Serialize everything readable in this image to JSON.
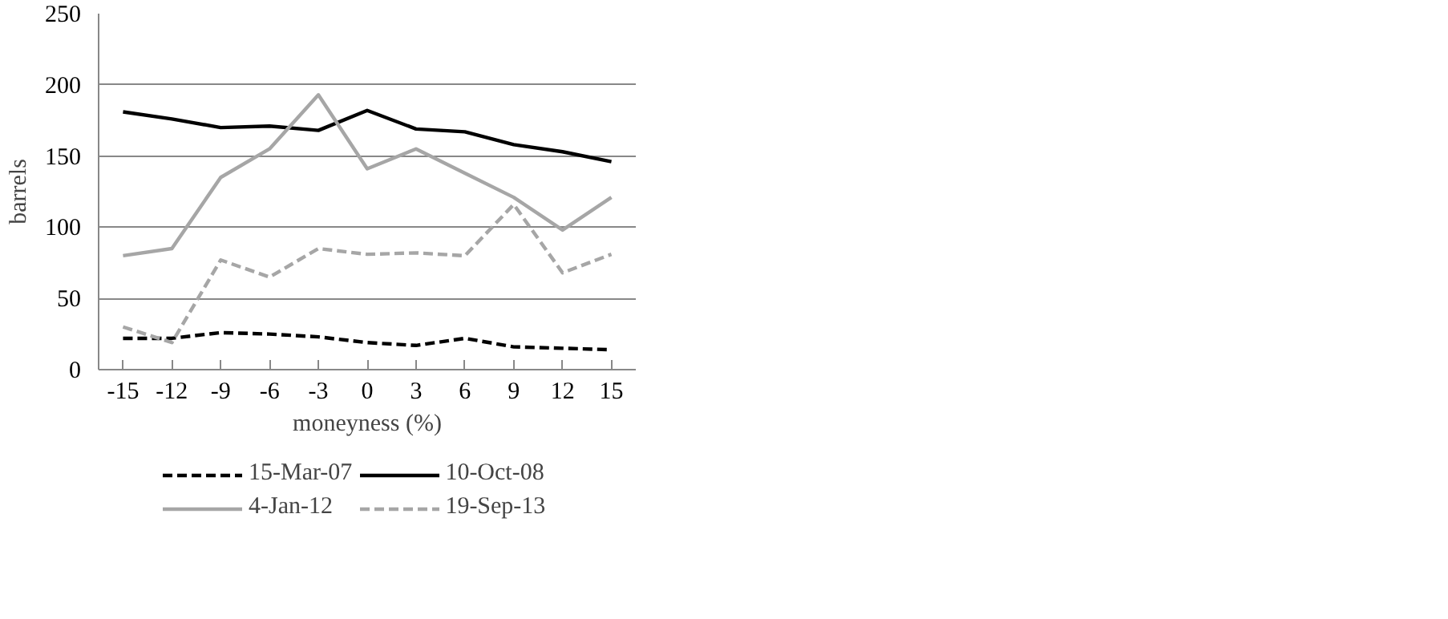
{
  "chart_data": {
    "type": "line",
    "xlabel": "moneyness (%)",
    "ylabel": "barrels",
    "categories": [
      "-15",
      "-12",
      "-9",
      "-6",
      "-3",
      "0",
      "3",
      "6",
      "9",
      "12",
      "15"
    ],
    "ylim": [
      0,
      250
    ],
    "yticks": [
      0,
      50,
      100,
      150,
      200,
      250
    ],
    "grid": "y",
    "legend": "bottom",
    "series": [
      {
        "name": "15-Mar-07",
        "color": "#000000",
        "line_style": "dashed",
        "values": [
          22,
          22,
          26,
          25,
          23,
          19,
          17,
          22,
          16,
          15,
          14
        ]
      },
      {
        "name": "10-Oct-08",
        "color": "#000000",
        "line_style": "solid",
        "values": [
          181,
          176,
          170,
          171,
          168,
          182,
          169,
          167,
          158,
          153,
          146
        ]
      },
      {
        "name": "4-Jan-12",
        "color": "#a6a6a6",
        "line_style": "solid",
        "values": [
          80,
          85,
          135,
          155,
          193,
          141,
          155,
          138,
          121,
          98,
          121
        ]
      },
      {
        "name": "19-Sep-13",
        "color": "#a6a6a6",
        "line_style": "dashed",
        "values": [
          30,
          19,
          77,
          65,
          85,
          81,
          82,
          80,
          116,
          68,
          81
        ]
      }
    ]
  }
}
